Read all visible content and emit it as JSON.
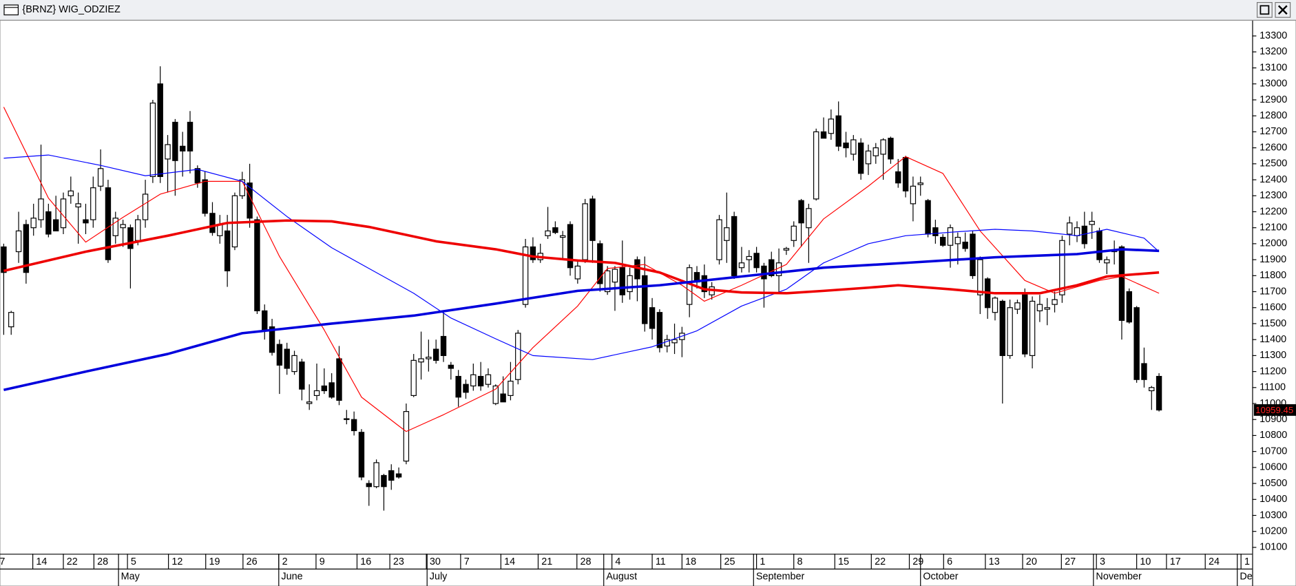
{
  "window": {
    "title": "{BRNZ} WIG_ODZIEZ"
  },
  "chart_data": {
    "type": "candlestick",
    "xlim": [
      -0.5,
      167.5
    ],
    "ylim": [
      10060,
      13380
    ],
    "up_color": "#ffffff",
    "down_color": "#000000",
    "yticks": [
      10100,
      10200,
      10300,
      10400,
      10500,
      10600,
      10700,
      10800,
      10900,
      11000,
      11100,
      11200,
      11300,
      11400,
      11500,
      11600,
      11700,
      11800,
      11900,
      12000,
      12100,
      12200,
      12300,
      12400,
      12500,
      12600,
      12700,
      12800,
      12900,
      13000,
      13100,
      13200,
      13300
    ],
    "xticks": [
      {
        "value": -1,
        "label": "7"
      },
      {
        "value": 3.9,
        "label": "14"
      },
      {
        "value": 8.0,
        "label": "22"
      },
      {
        "value": 12.1,
        "label": "28"
      },
      {
        "value": 16.6,
        "label": "5"
      },
      {
        "value": 22.1,
        "label": "12"
      },
      {
        "value": 27.1,
        "label": "19"
      },
      {
        "value": 32.1,
        "label": "26"
      },
      {
        "value": 36.9,
        "label": "2"
      },
      {
        "value": 41.9,
        "label": "9"
      },
      {
        "value": 47.4,
        "label": "16"
      },
      {
        "value": 51.8,
        "label": "23"
      },
      {
        "value": 56.7,
        "label": "30"
      },
      {
        "value": 61.3,
        "label": "7"
      },
      {
        "value": 66.7,
        "label": "14"
      },
      {
        "value": 71.7,
        "label": "21"
      },
      {
        "value": 76.9,
        "label": "28"
      },
      {
        "value": 81.6,
        "label": "4"
      },
      {
        "value": 87.0,
        "label": "11"
      },
      {
        "value": 91.0,
        "label": "18"
      },
      {
        "value": 96.2,
        "label": "25"
      },
      {
        "value": 101,
        "label": "1"
      },
      {
        "value": 106,
        "label": "8"
      },
      {
        "value": 111.5,
        "label": "15"
      },
      {
        "value": 116.4,
        "label": "22"
      },
      {
        "value": 121.5,
        "label": "29"
      },
      {
        "value": 126.1,
        "label": "6"
      },
      {
        "value": 131.7,
        "label": "13"
      },
      {
        "value": 136.7,
        "label": "20"
      },
      {
        "value": 141.9,
        "label": "27"
      },
      {
        "value": 146.6,
        "label": "3"
      },
      {
        "value": 152,
        "label": "10"
      },
      {
        "value": 156,
        "label": "17"
      },
      {
        "value": 161.2,
        "label": "24"
      },
      {
        "value": 166,
        "label": "1"
      }
    ],
    "months": [
      {
        "value": 15.4,
        "label": "May"
      },
      {
        "value": 36.9,
        "label": "June"
      },
      {
        "value": 56.8,
        "label": "July"
      },
      {
        "value": 80.5,
        "label": "August"
      },
      {
        "value": 100.6,
        "label": "September"
      },
      {
        "value": 123,
        "label": "October"
      },
      {
        "value": 146.2,
        "label": "November"
      },
      {
        "value": 165.5,
        "label": "De"
      }
    ],
    "open": [
      11980,
      11480,
      11950,
      12120,
      12100,
      12150,
      12200,
      12150,
      12100,
      12300,
      12230,
      12150,
      12150,
      12360,
      12350,
      12050,
      12100,
      12100,
      12020,
      12150,
      12420,
      13000,
      12530,
      12760,
      12610,
      12760,
      12470,
      12400,
      12190,
      12050,
      12080,
      11980,
      12300,
      12380,
      12150,
      11580,
      11480,
      11370,
      11340,
      11200,
      11260,
      11000,
      11050,
      11110,
      11130,
      11280,
      10900,
      10900,
      10820,
      10500,
      10480,
      10550,
      10580,
      10560,
      10640,
      11050,
      11260,
      11280,
      11340,
      11420,
      11240,
      11170,
      11120,
      11110,
      11170,
      11120,
      11000,
      11060,
      11050,
      11150,
      11620,
      11980,
      11900,
      12050,
      12100,
      12040,
      12120,
      11780,
      11900,
      12280,
      12000,
      11700,
      11760,
      11850,
      11700,
      11900,
      11800,
      11600,
      11570,
      11360,
      11380,
      11400,
      11620,
      11820,
      11800,
      11680,
      11900,
      12020,
      12170,
      11850,
      11900,
      11940,
      11860,
      11900,
      11800,
      11960,
      12020,
      12270,
      12100,
      12280,
      12700,
      12690,
      12800,
      12630,
      12560,
      12630,
      12500,
      12550,
      12560,
      12660,
      12450,
      12540,
      12250,
      12370,
      12270,
      12100,
      12040,
      11990,
      12000,
      12010,
      12060,
      11680,
      11780,
      11570,
      11640,
      11300,
      11590,
      11680,
      11300,
      11580,
      11590,
      11620,
      11680,
      12060,
      12050,
      12110,
      12120,
      12080,
      11880,
      11950,
      11980,
      11700,
      11600,
      11250,
      11080,
      11170
    ],
    "high": [
      12000,
      11580,
      12200,
      12150,
      12250,
      12620,
      12250,
      12300,
      12320,
      12420,
      12320,
      12250,
      12420,
      12590,
      12400,
      12200,
      12150,
      12120,
      12180,
      12400,
      12900,
      13110,
      12680,
      12780,
      12700,
      12830,
      12490,
      12450,
      12260,
      12180,
      12180,
      12320,
      12450,
      12500,
      12170,
      11620,
      11530,
      11400,
      11380,
      11330,
      11280,
      11120,
      11250,
      11220,
      11190,
      11360,
      10960,
      10950,
      10840,
      10520,
      10650,
      10560,
      10620,
      10600,
      11000,
      11310,
      11450,
      11400,
      11400,
      11580,
      11260,
      11210,
      11150,
      11250,
      11260,
      11220,
      11120,
      11170,
      11260,
      11460,
      12030,
      12040,
      12000,
      12230,
      12140,
      12080,
      12140,
      11890,
      12280,
      12300,
      12020,
      11860,
      11860,
      12020,
      11850,
      11920,
      11920,
      11660,
      11590,
      11430,
      11500,
      11480,
      11870,
      11860,
      11870,
      11760,
      12180,
      12320,
      12200,
      11980,
      11960,
      11980,
      11880,
      11950,
      11970,
      11980,
      12140,
      12280,
      12250,
      12720,
      12790,
      12840,
      12890,
      12700,
      12680,
      12660,
      12620,
      12630,
      12660,
      12670,
      12530,
      12550,
      12420,
      12420,
      12280,
      12150,
      12060,
      12120,
      12070,
      12070,
      12080,
      11920,
      11790,
      11670,
      11650,
      11650,
      11650,
      11720,
      11670,
      11680,
      11660,
      11700,
      12050,
      12170,
      12140,
      12200,
      12200,
      12100,
      11920,
      12020,
      11990,
      11720,
      11610,
      11350,
      11110,
      11190
    ],
    "low": [
      11430,
      11430,
      11880,
      11750,
      12050,
      12100,
      12040,
      12080,
      12060,
      12250,
      12000,
      12060,
      12100,
      12330,
      11880,
      12000,
      11980,
      11720,
      11990,
      12100,
      12380,
      12380,
      12320,
      12300,
      12420,
      12440,
      12350,
      12170,
      12050,
      12000,
      11730,
      11960,
      12280,
      12100,
      11560,
      11400,
      11300,
      11060,
      11180,
      11180,
      11020,
      10960,
      11020,
      11060,
      11030,
      10990,
      10870,
      10800,
      10520,
      10360,
      10470,
      10330,
      10460,
      10530,
      10620,
      11040,
      11150,
      11200,
      11250,
      11260,
      11150,
      10980,
      11030,
      11080,
      11080,
      11100,
      10990,
      11010,
      11020,
      11120,
      11600,
      11880,
      11880,
      12030,
      12060,
      11900,
      11800,
      11750,
      11880,
      11880,
      11700,
      11680,
      11580,
      11630,
      11650,
      11640,
      11450,
      11400,
      11320,
      11320,
      11310,
      11290,
      11540,
      11720,
      11660,
      11650,
      11870,
      11880,
      11780,
      11820,
      11820,
      11820,
      11600,
      11790,
      11690,
      11930,
      11980,
      11980,
      11880,
      12270,
      12660,
      12650,
      12580,
      12540,
      12520,
      12400,
      12430,
      12500,
      12400,
      12500,
      12350,
      12290,
      12140,
      12300,
      12040,
      12000,
      11980,
      11850,
      11870,
      11950,
      11780,
      11560,
      11530,
      11520,
      11000,
      11280,
      11560,
      11290,
      11220,
      11510,
      11490,
      11570,
      11630,
      11990,
      12010,
      11970,
      12030,
      11880,
      11810,
      11870,
      11400,
      11500,
      11130,
      11100,
      10960,
      10950
    ],
    "close": [
      11820,
      11570,
      12080,
      11820,
      12160,
      12280,
      12060,
      12080,
      12280,
      12330,
      12250,
      12130,
      12350,
      12470,
      11900,
      12160,
      12120,
      11970,
      12150,
      12310,
      12880,
      12420,
      12620,
      12520,
      12580,
      12580,
      12380,
      12190,
      12070,
      12120,
      11830,
      12300,
      12400,
      12160,
      11580,
      11460,
      11320,
      11240,
      11220,
      11300,
      11090,
      11010,
      11080,
      11080,
      11040,
      11020,
      10905,
      10830,
      10540,
      10480,
      10630,
      10480,
      10520,
      10540,
      10950,
      11270,
      11280,
      11290,
      11270,
      11300,
      11220,
      11040,
      11070,
      11180,
      11110,
      11180,
      11110,
      11010,
      11140,
      11440,
      11980,
      11900,
      11940,
      12080,
      12070,
      12050,
      11850,
      11860,
      12250,
      12020,
      11750,
      11830,
      11840,
      11680,
      11800,
      11780,
      11500,
      11470,
      11350,
      11400,
      11400,
      11440,
      11850,
      11760,
      11700,
      11730,
      12150,
      12100,
      11800,
      11880,
      11920,
      11850,
      11780,
      11800,
      11880,
      11970,
      12110,
      12130,
      12220,
      12700,
      12660,
      12780,
      12610,
      12600,
      12650,
      12440,
      12580,
      12600,
      12650,
      12530,
      12380,
      12330,
      12360,
      12380,
      12060,
      12050,
      11990,
      12100,
      12040,
      11970,
      11800,
      11900,
      11600,
      11660,
      11300,
      11600,
      11630,
      11310,
      11640,
      11620,
      11600,
      11650,
      12020,
      12130,
      12100,
      12000,
      12140,
      11900,
      11900,
      11960,
      11520,
      11510,
      11150,
      11150,
      11100,
      10959.45
    ],
    "lines": [
      {
        "color": "#ff0000",
        "width": 1,
        "x": [
          0,
          6,
          11,
          16,
          21,
          27,
          32,
          37,
          43,
          48,
          53,
          54,
          59,
          66,
          71,
          77,
          81,
          86,
          91,
          94,
          99,
          105,
          110,
          116,
          121,
          126,
          131,
          137,
          141,
          147,
          150,
          155
        ],
        "values": [
          12855,
          12285,
          12010,
          12165,
          12310,
          12390,
          12390,
          11920,
          11460,
          11040,
          10860,
          10825,
          10930,
          11090,
          11350,
          11610,
          11845,
          11870,
          11740,
          11640,
          11740,
          11870,
          12155,
          12360,
          12545,
          12440,
          12080,
          11770,
          11690,
          11770,
          11795,
          11690
        ]
      },
      {
        "color": "#0000ff",
        "width": 1,
        "x": [
          0,
          6,
          13,
          19,
          26,
          32,
          38,
          44,
          49,
          55,
          60,
          66,
          71,
          79,
          87,
          93,
          99,
          105,
          110,
          116,
          121,
          128,
          133,
          138,
          144,
          148,
          153,
          155
        ],
        "values": [
          12535,
          12555,
          12490,
          12425,
          12465,
          12390,
          12170,
          11975,
          11845,
          11690,
          11535,
          11405,
          11300,
          11275,
          11355,
          11455,
          11610,
          11715,
          11880,
          12000,
          12050,
          12075,
          12090,
          12080,
          12050,
          12090,
          12035,
          11950
        ]
      },
      {
        "color": "#ee0000",
        "width": 3,
        "x": [
          0,
          11,
          22,
          30,
          38,
          44,
          49,
          58,
          66,
          71,
          77,
          82,
          88,
          94,
          99,
          105,
          110,
          116,
          120,
          127,
          133,
          139,
          144,
          148,
          155
        ],
        "values": [
          11830,
          11950,
          12050,
          12130,
          12145,
          12140,
          12105,
          12015,
          11965,
          11920,
          11895,
          11880,
          11820,
          11715,
          11695,
          11690,
          11705,
          11725,
          11740,
          11715,
          11690,
          11690,
          11740,
          11795,
          11820
        ]
      },
      {
        "color": "#0000dd",
        "width": 3,
        "x": [
          0,
          11,
          22,
          32,
          44,
          55,
          66,
          77,
          88,
          99,
          110,
          121,
          133,
          144,
          150,
          155
        ],
        "values": [
          11085,
          11200,
          11310,
          11440,
          11500,
          11550,
          11625,
          11705,
          11740,
          11795,
          11850,
          11880,
          11915,
          11935,
          11965,
          11955
        ]
      }
    ],
    "last_price": 10959.45
  }
}
